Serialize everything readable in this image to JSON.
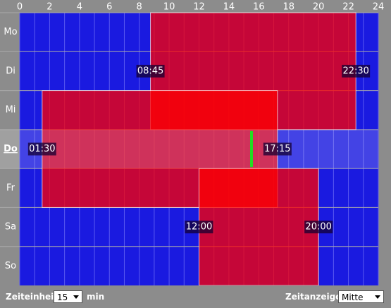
{
  "hours": [
    0,
    2,
    4,
    6,
    8,
    10,
    12,
    14,
    16,
    18,
    20,
    22,
    24
  ],
  "days": [
    {
      "label": "Mo"
    },
    {
      "label": "Di"
    },
    {
      "label": "Mi"
    },
    {
      "label": "Do",
      "current": true
    },
    {
      "label": "Fr"
    },
    {
      "label": "Sa"
    },
    {
      "label": "So"
    }
  ],
  "blocks": [
    {
      "start": "08:45",
      "end": "22:30",
      "from_day": "Mo",
      "to_day": "Mi"
    },
    {
      "start": "01:30",
      "end": "17:15",
      "from_day": "Mi",
      "to_day": "Fr"
    },
    {
      "start": "12:00",
      "end": "20:00",
      "from_day": "Fr",
      "to_day": "So"
    }
  ],
  "controls": {
    "unit_label": "Zeiteinheit:",
    "unit_value": "15",
    "unit_suffix": "min",
    "display_label": "Zeitanzeige:",
    "display_value": "Mitte"
  }
}
